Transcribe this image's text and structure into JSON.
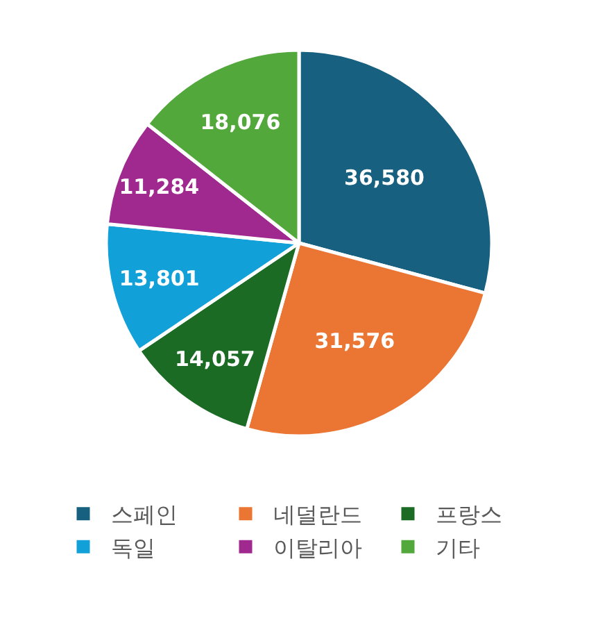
{
  "chart_data": {
    "type": "pie",
    "categories": [
      "스페인",
      "네덜란드",
      "프랑스",
      "독일",
      "이탈리아",
      "기타"
    ],
    "values": [
      36580,
      31576,
      14057,
      13801,
      11284,
      18076
    ],
    "colors": [
      "#17607f",
      "#eb7533",
      "#1b6b25",
      "#12a0d8",
      "#a0298f",
      "#52a83a"
    ],
    "value_labels": [
      "36,580",
      "31,576",
      "14,057",
      "13,801",
      "11,284",
      "18,076"
    ],
    "legend": "bottom"
  }
}
